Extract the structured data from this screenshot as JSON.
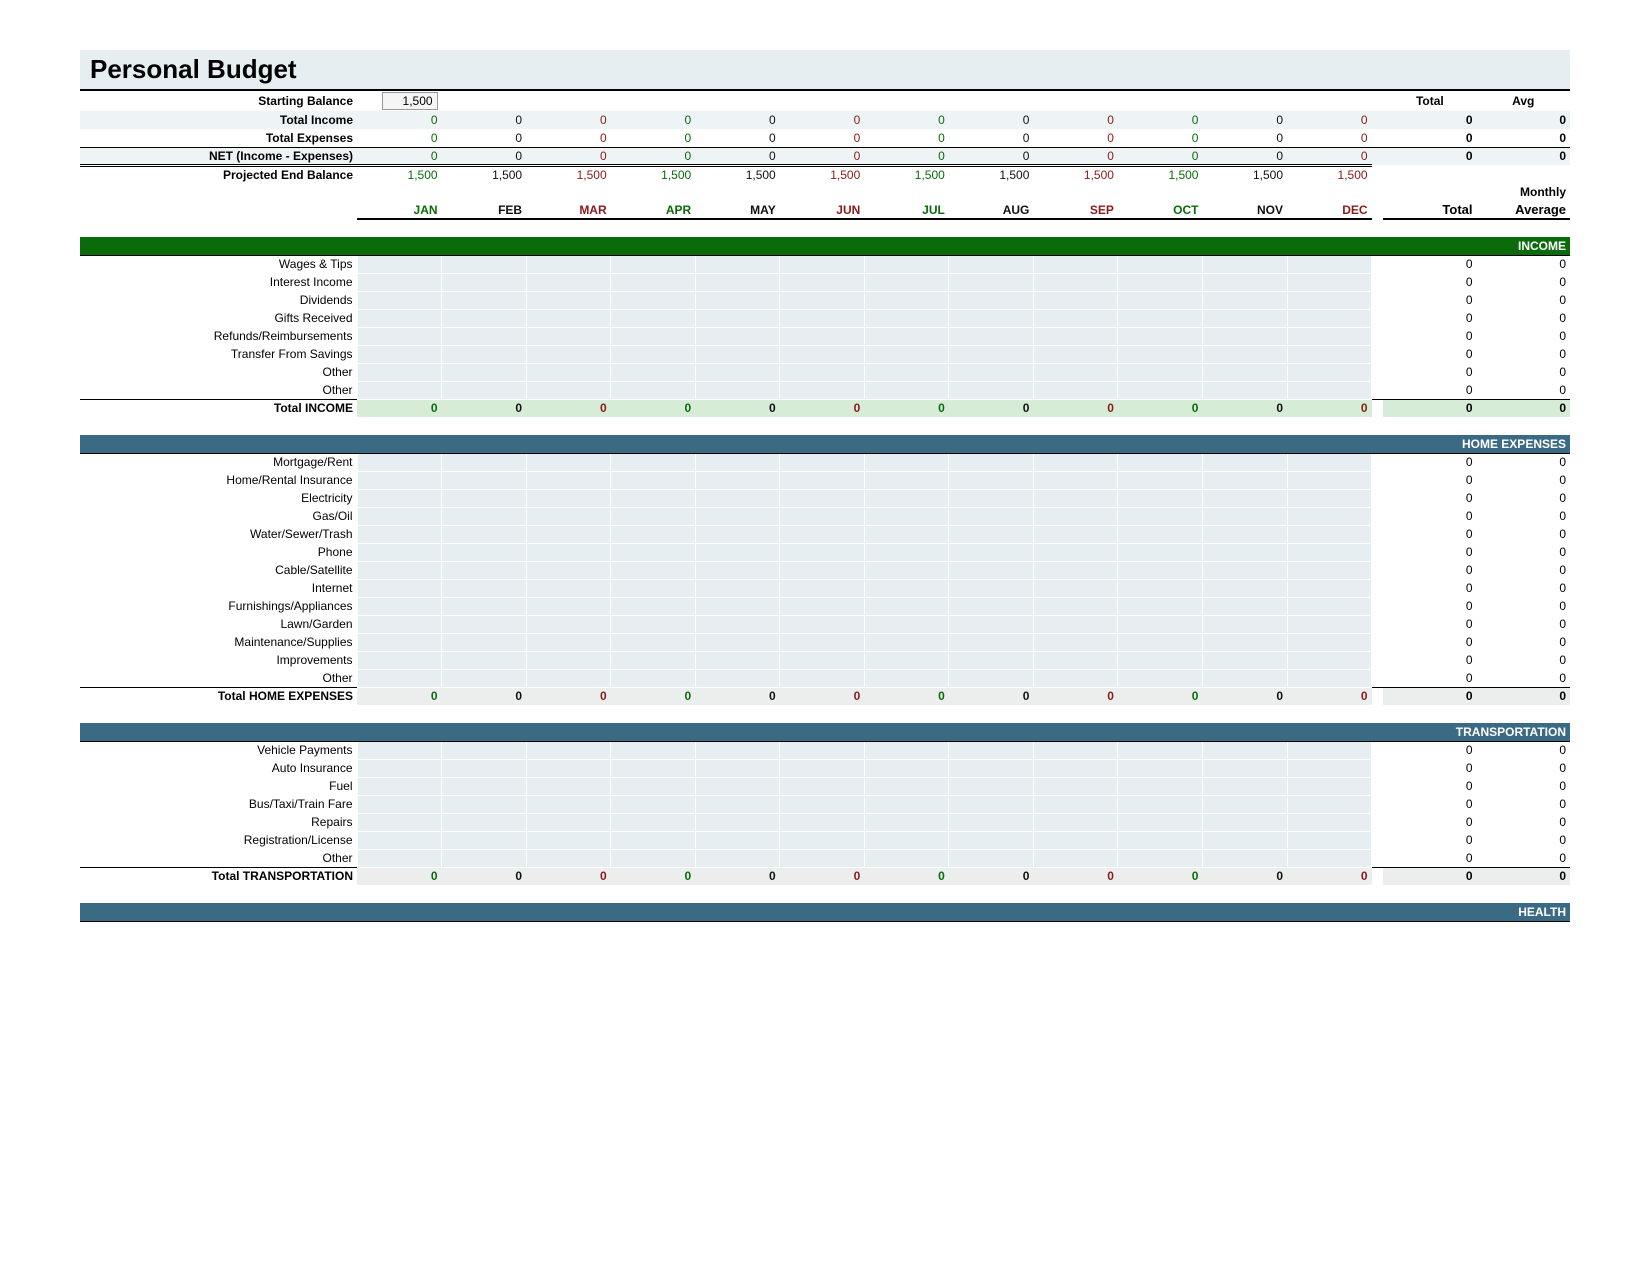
{
  "title": "Personal Budget",
  "months": [
    "JAN",
    "FEB",
    "MAR",
    "APR",
    "MAY",
    "JUN",
    "JUL",
    "AUG",
    "SEP",
    "OCT",
    "NOV",
    "DEC"
  ],
  "month_colors": [
    "#0b6b0b",
    "#111111",
    "#8b1a1a",
    "#0b6b0b",
    "#111111",
    "#8b1a1a",
    "#0b6b0b",
    "#111111",
    "#8b1a1a",
    "#0b6b0b",
    "#111111",
    "#8b1a1a"
  ],
  "header_labels": {
    "total": "Total",
    "avg": "Avg",
    "monthly": "Monthly",
    "total2": "Total",
    "average": "Average"
  },
  "summary": {
    "starting_balance_label": "Starting Balance",
    "starting_balance_value": "1,500",
    "rows": [
      {
        "label": "Total Income",
        "shade": true,
        "vals": [
          "0",
          "0",
          "0",
          "0",
          "0",
          "0",
          "0",
          "0",
          "0",
          "0",
          "0",
          "0"
        ],
        "total": "0",
        "avg": "0"
      },
      {
        "label": "Total Expenses",
        "shade": false,
        "vals": [
          "0",
          "0",
          "0",
          "0",
          "0",
          "0",
          "0",
          "0",
          "0",
          "0",
          "0",
          "0"
        ],
        "total": "0",
        "avg": "0"
      },
      {
        "label": "NET (Income - Expenses)",
        "shade": true,
        "double": true,
        "vals": [
          "0",
          "0",
          "0",
          "0",
          "0",
          "0",
          "0",
          "0",
          "0",
          "0",
          "0",
          "0"
        ],
        "total": "0",
        "avg": "0"
      },
      {
        "label": "Projected End Balance",
        "shade": false,
        "top": true,
        "vals": [
          "1,500",
          "1,500",
          "1,500",
          "1,500",
          "1,500",
          "1,500",
          "1,500",
          "1,500",
          "1,500",
          "1,500",
          "1,500",
          "1,500"
        ],
        "total": "",
        "avg": ""
      }
    ]
  },
  "categories": [
    {
      "name": "INCOME",
      "style": "income",
      "items": [
        "Wages & Tips",
        "Interest Income",
        "Dividends",
        "Gifts Received",
        "Refunds/Reimbursements",
        "Transfer From Savings",
        "Other",
        "Other"
      ],
      "total_label": "Total INCOME",
      "totals": [
        "0",
        "0",
        "0",
        "0",
        "0",
        "0",
        "0",
        "0",
        "0",
        "0",
        "0",
        "0"
      ],
      "total_sum": "0",
      "total_avg": "0"
    },
    {
      "name": "HOME EXPENSES",
      "style": "other",
      "items": [
        "Mortgage/Rent",
        "Home/Rental Insurance",
        "Electricity",
        "Gas/Oil",
        "Water/Sewer/Trash",
        "Phone",
        "Cable/Satellite",
        "Internet",
        "Furnishings/Appliances",
        "Lawn/Garden",
        "Maintenance/Supplies",
        "Improvements",
        "Other"
      ],
      "total_label": "Total HOME EXPENSES",
      "totals": [
        "0",
        "0",
        "0",
        "0",
        "0",
        "0",
        "0",
        "0",
        "0",
        "0",
        "0",
        "0"
      ],
      "total_sum": "0",
      "total_avg": "0"
    },
    {
      "name": "TRANSPORTATION",
      "style": "other",
      "items": [
        "Vehicle Payments",
        "Auto Insurance",
        "Fuel",
        "Bus/Taxi/Train Fare",
        "Repairs",
        "Registration/License",
        "Other"
      ],
      "total_label": "Total TRANSPORTATION",
      "totals": [
        "0",
        "0",
        "0",
        "0",
        "0",
        "0",
        "0",
        "0",
        "0",
        "0",
        "0",
        "0"
      ],
      "total_sum": "0",
      "total_avg": "0"
    },
    {
      "name": "HEALTH",
      "style": "other",
      "items": [],
      "total_label": "",
      "totals": [],
      "total_sum": "",
      "total_avg": ""
    }
  ],
  "item_defaults": {
    "total": "0",
    "avg": "0"
  }
}
